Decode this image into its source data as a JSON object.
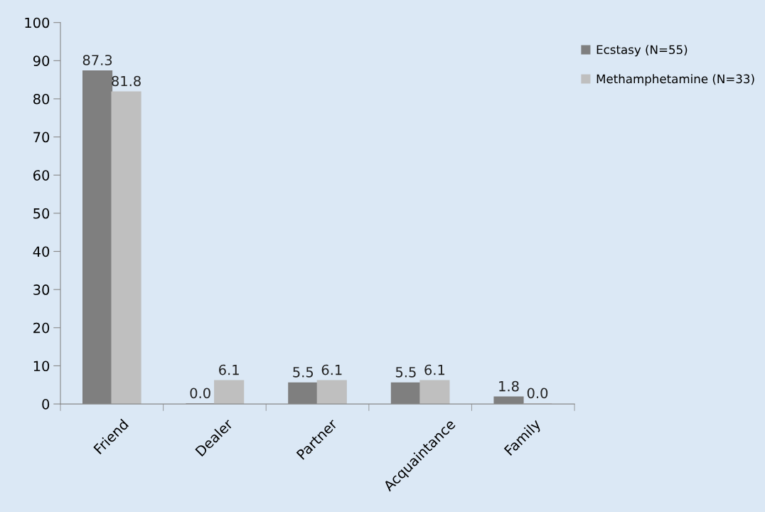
{
  "chart_data": {
    "type": "bar",
    "categories": [
      "Friend",
      "Dealer",
      "Partner",
      "Acquaintance",
      "Family"
    ],
    "series": [
      {
        "name": "Ecstasy (N=55)",
        "color": "#7f7f7f",
        "values": [
          87.3,
          0.0,
          5.5,
          5.5,
          1.8
        ],
        "value_labels": [
          "87.3",
          "0.0",
          "5.5",
          "5.5",
          "1.8"
        ]
      },
      {
        "name": "Methamphetamine (N=33)",
        "color": "#bfbfbf",
        "values": [
          81.8,
          6.1,
          6.1,
          6.1,
          0.0
        ],
        "value_labels": [
          "81.8",
          "6.1",
          "6.1",
          "6.1",
          "0.0"
        ]
      }
    ],
    "ylim": [
      0,
      100
    ],
    "yticks": [
      0,
      10,
      20,
      30,
      40,
      50,
      60,
      70,
      80,
      90,
      100
    ],
    "grid": false,
    "legend": "top right"
  }
}
